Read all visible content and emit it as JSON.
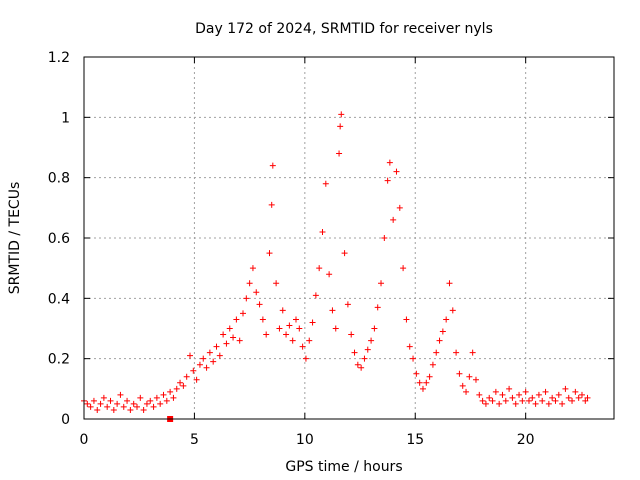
{
  "chart_data": {
    "type": "scatter",
    "title": "Day 172 of 2024, SRMTID for receiver nyls",
    "xlabel": "GPS time / hours",
    "ylabel": "SRMTID / TECUs",
    "xlim": [
      0,
      24
    ],
    "ylim": [
      0,
      1.2
    ],
    "x_ticks": [
      0,
      5,
      10,
      15,
      20
    ],
    "x_tick_labels": [
      "0",
      "5",
      "10",
      "15",
      "20"
    ],
    "y_ticks": [
      0,
      0.2,
      0.4,
      0.6,
      0.8,
      1,
      1.2
    ],
    "y_tick_labels": [
      "0",
      "0.2",
      "0.4",
      "0.6",
      "0.8",
      "1",
      "1.2"
    ],
    "grid": true,
    "marker": "plus",
    "color": "#ff0000",
    "series": [
      {
        "name": "SRMTID",
        "points": [
          [
            0.0,
            0.06
          ],
          [
            0.15,
            0.05
          ],
          [
            0.3,
            0.04
          ],
          [
            0.45,
            0.06
          ],
          [
            0.6,
            0.03
          ],
          [
            0.75,
            0.05
          ],
          [
            0.9,
            0.07
          ],
          [
            1.05,
            0.04
          ],
          [
            1.2,
            0.06
          ],
          [
            1.35,
            0.03
          ],
          [
            1.5,
            0.05
          ],
          [
            1.65,
            0.08
          ],
          [
            1.8,
            0.04
          ],
          [
            1.95,
            0.06
          ],
          [
            2.1,
            0.03
          ],
          [
            2.25,
            0.05
          ],
          [
            2.4,
            0.04
          ],
          [
            2.55,
            0.07
          ],
          [
            2.7,
            0.03
          ],
          [
            2.85,
            0.05
          ],
          [
            3.0,
            0.06
          ],
          [
            3.15,
            0.04
          ],
          [
            3.3,
            0.07
          ],
          [
            3.45,
            0.05
          ],
          [
            3.6,
            0.08
          ],
          [
            3.75,
            0.06
          ],
          [
            3.9,
            0.09
          ],
          [
            4.05,
            0.07
          ],
          [
            4.2,
            0.1
          ],
          [
            4.35,
            0.12
          ],
          [
            4.5,
            0.11
          ],
          [
            4.65,
            0.14
          ],
          [
            4.8,
            0.21
          ],
          [
            4.95,
            0.16
          ],
          [
            5.1,
            0.13
          ],
          [
            5.25,
            0.18
          ],
          [
            5.4,
            0.2
          ],
          [
            5.55,
            0.17
          ],
          [
            5.7,
            0.22
          ],
          [
            5.85,
            0.19
          ],
          [
            6.0,
            0.24
          ],
          [
            6.15,
            0.21
          ],
          [
            6.3,
            0.28
          ],
          [
            6.45,
            0.25
          ],
          [
            6.6,
            0.3
          ],
          [
            6.75,
            0.27
          ],
          [
            6.9,
            0.33
          ],
          [
            7.05,
            0.26
          ],
          [
            7.2,
            0.35
          ],
          [
            7.35,
            0.4
          ],
          [
            7.5,
            0.45
          ],
          [
            7.65,
            0.5
          ],
          [
            7.8,
            0.42
          ],
          [
            7.95,
            0.38
          ],
          [
            8.1,
            0.33
          ],
          [
            8.25,
            0.28
          ],
          [
            8.4,
            0.55
          ],
          [
            8.5,
            0.71
          ],
          [
            8.55,
            0.84
          ],
          [
            8.7,
            0.45
          ],
          [
            8.85,
            0.3
          ],
          [
            9.0,
            0.36
          ],
          [
            9.15,
            0.28
          ],
          [
            9.3,
            0.31
          ],
          [
            9.45,
            0.26
          ],
          [
            9.6,
            0.33
          ],
          [
            9.75,
            0.3
          ],
          [
            9.9,
            0.24
          ],
          [
            10.05,
            0.2
          ],
          [
            10.2,
            0.26
          ],
          [
            10.35,
            0.32
          ],
          [
            10.5,
            0.41
          ],
          [
            10.65,
            0.5
          ],
          [
            10.8,
            0.62
          ],
          [
            10.95,
            0.78
          ],
          [
            11.1,
            0.48
          ],
          [
            11.25,
            0.36
          ],
          [
            11.4,
            0.3
          ],
          [
            11.55,
            0.88
          ],
          [
            11.6,
            0.97
          ],
          [
            11.65,
            1.01
          ],
          [
            11.8,
            0.55
          ],
          [
            11.95,
            0.38
          ],
          [
            12.1,
            0.28
          ],
          [
            12.25,
            0.22
          ],
          [
            12.4,
            0.18
          ],
          [
            12.55,
            0.17
          ],
          [
            12.7,
            0.2
          ],
          [
            12.85,
            0.23
          ],
          [
            13.0,
            0.26
          ],
          [
            13.15,
            0.3
          ],
          [
            13.3,
            0.37
          ],
          [
            13.45,
            0.45
          ],
          [
            13.6,
            0.6
          ],
          [
            13.75,
            0.79
          ],
          [
            13.85,
            0.85
          ],
          [
            14.0,
            0.66
          ],
          [
            14.15,
            0.82
          ],
          [
            14.3,
            0.7
          ],
          [
            14.45,
            0.5
          ],
          [
            14.6,
            0.33
          ],
          [
            14.75,
            0.24
          ],
          [
            14.9,
            0.2
          ],
          [
            15.05,
            0.15
          ],
          [
            15.2,
            0.12
          ],
          [
            15.35,
            0.1
          ],
          [
            15.5,
            0.12
          ],
          [
            15.65,
            0.14
          ],
          [
            15.8,
            0.18
          ],
          [
            15.95,
            0.22
          ],
          [
            16.1,
            0.26
          ],
          [
            16.25,
            0.29
          ],
          [
            16.4,
            0.33
          ],
          [
            16.55,
            0.45
          ],
          [
            16.7,
            0.36
          ],
          [
            16.85,
            0.22
          ],
          [
            17.0,
            0.15
          ],
          [
            17.15,
            0.11
          ],
          [
            17.3,
            0.09
          ],
          [
            17.45,
            0.14
          ],
          [
            17.6,
            0.22
          ],
          [
            17.75,
            0.13
          ],
          [
            17.9,
            0.08
          ],
          [
            18.05,
            0.06
          ],
          [
            18.2,
            0.05
          ],
          [
            18.35,
            0.07
          ],
          [
            18.5,
            0.06
          ],
          [
            18.65,
            0.09
          ],
          [
            18.8,
            0.05
          ],
          [
            18.95,
            0.08
          ],
          [
            19.1,
            0.06
          ],
          [
            19.25,
            0.1
          ],
          [
            19.4,
            0.07
          ],
          [
            19.55,
            0.05
          ],
          [
            19.7,
            0.08
          ],
          [
            19.85,
            0.06
          ],
          [
            20.0,
            0.09
          ],
          [
            20.15,
            0.06
          ],
          [
            20.3,
            0.07
          ],
          [
            20.45,
            0.05
          ],
          [
            20.6,
            0.08
          ],
          [
            20.75,
            0.06
          ],
          [
            20.9,
            0.09
          ],
          [
            21.05,
            0.05
          ],
          [
            21.2,
            0.07
          ],
          [
            21.35,
            0.06
          ],
          [
            21.5,
            0.08
          ],
          [
            21.65,
            0.05
          ],
          [
            21.8,
            0.1
          ],
          [
            21.95,
            0.07
          ],
          [
            22.1,
            0.06
          ],
          [
            22.25,
            0.09
          ],
          [
            22.4,
            0.07
          ],
          [
            22.55,
            0.08
          ],
          [
            22.7,
            0.06
          ],
          [
            22.8,
            0.07
          ]
        ]
      }
    ],
    "annotations": [
      {
        "kind": "square-marker",
        "x": 3.9,
        "y": 0.0
      }
    ]
  }
}
